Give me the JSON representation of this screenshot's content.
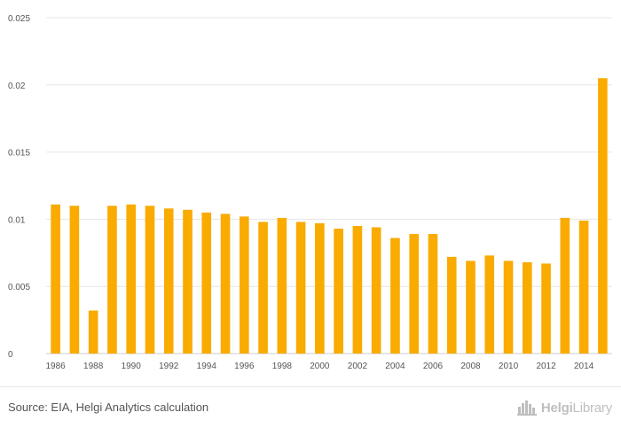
{
  "chart_data": {
    "type": "bar",
    "title": "",
    "xlabel": "",
    "ylabel": "",
    "ylim": [
      0,
      0.025
    ],
    "yticks": [
      0,
      0.005,
      0.01,
      0.015,
      0.02,
      0.025
    ],
    "ytick_labels": [
      "0",
      "0.005",
      "0.01",
      "0.015",
      "0.02",
      "0.025"
    ],
    "grid": true,
    "bar_color": "#f9ab00",
    "categories": [
      "1986",
      "1987",
      "1988",
      "1989",
      "1990",
      "1991",
      "1992",
      "1993",
      "1994",
      "1995",
      "1996",
      "1997",
      "1998",
      "1999",
      "2000",
      "2001",
      "2002",
      "2003",
      "2004",
      "2005",
      "2006",
      "2007",
      "2008",
      "2009",
      "2010",
      "2011",
      "2012",
      "2013",
      "2014",
      "2015"
    ],
    "xtick_labels": [
      "1986",
      "1988",
      "1990",
      "1992",
      "1994",
      "1996",
      "1998",
      "2000",
      "2002",
      "2004",
      "2006",
      "2008",
      "2010",
      "2012",
      "2014"
    ],
    "values": [
      0.0111,
      0.011,
      0.0032,
      0.011,
      0.0111,
      0.011,
      0.0108,
      0.0107,
      0.0105,
      0.0104,
      0.0102,
      0.0098,
      0.0101,
      0.0098,
      0.0097,
      0.0093,
      0.0095,
      0.0094,
      0.0086,
      0.0089,
      0.0089,
      0.0072,
      0.0069,
      0.0073,
      0.0069,
      0.0068,
      0.0067,
      0.0101,
      0.0099,
      0.0205
    ]
  },
  "footer": {
    "source": "Source: EIA, Helgi Analytics calculation",
    "logo_prefix": "Helgi",
    "logo_suffix": "Library",
    "logo_icon": "city-skyline-icon"
  }
}
